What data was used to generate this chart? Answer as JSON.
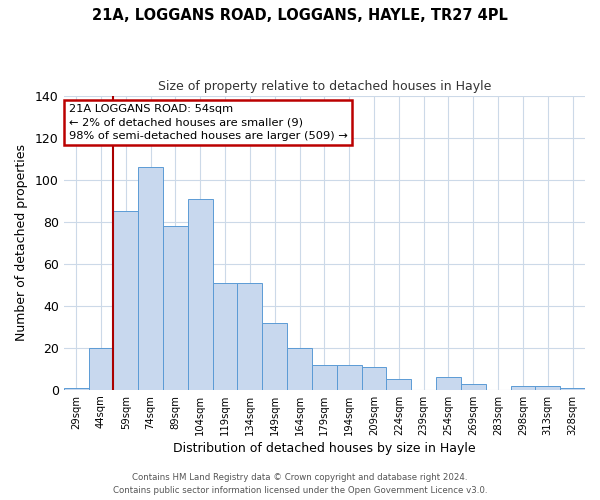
{
  "title": "21A, LOGGANS ROAD, LOGGANS, HAYLE, TR27 4PL",
  "subtitle": "Size of property relative to detached houses in Hayle",
  "xlabel": "Distribution of detached houses by size in Hayle",
  "ylabel": "Number of detached properties",
  "bin_labels": [
    "29sqm",
    "44sqm",
    "59sqm",
    "74sqm",
    "89sqm",
    "104sqm",
    "119sqm",
    "134sqm",
    "149sqm",
    "164sqm",
    "179sqm",
    "194sqm",
    "209sqm",
    "224sqm",
    "239sqm",
    "254sqm",
    "269sqm",
    "283sqm",
    "298sqm",
    "313sqm",
    "328sqm"
  ],
  "bar_heights": [
    1,
    20,
    85,
    106,
    78,
    91,
    51,
    51,
    32,
    20,
    12,
    12,
    11,
    5,
    0,
    6,
    3,
    0,
    2,
    2,
    1
  ],
  "bar_color": "#c8d8ee",
  "bar_edge_color": "#5b9bd5",
  "vline_x": 1.5,
  "vline_color": "#aa0000",
  "ylim": [
    0,
    140
  ],
  "yticks": [
    0,
    20,
    40,
    60,
    80,
    100,
    120,
    140
  ],
  "annotation_title": "21A LOGGANS ROAD: 54sqm",
  "annotation_line1": "← 2% of detached houses are smaller (9)",
  "annotation_line2": "98% of semi-detached houses are larger (509) →",
  "annotation_box_color": "#ffffff",
  "annotation_border_color": "#bb0000",
  "footer_line1": "Contains HM Land Registry data © Crown copyright and database right 2024.",
  "footer_line2": "Contains public sector information licensed under the Open Government Licence v3.0.",
  "background_color": "#ffffff",
  "grid_color": "#ccd9e8"
}
